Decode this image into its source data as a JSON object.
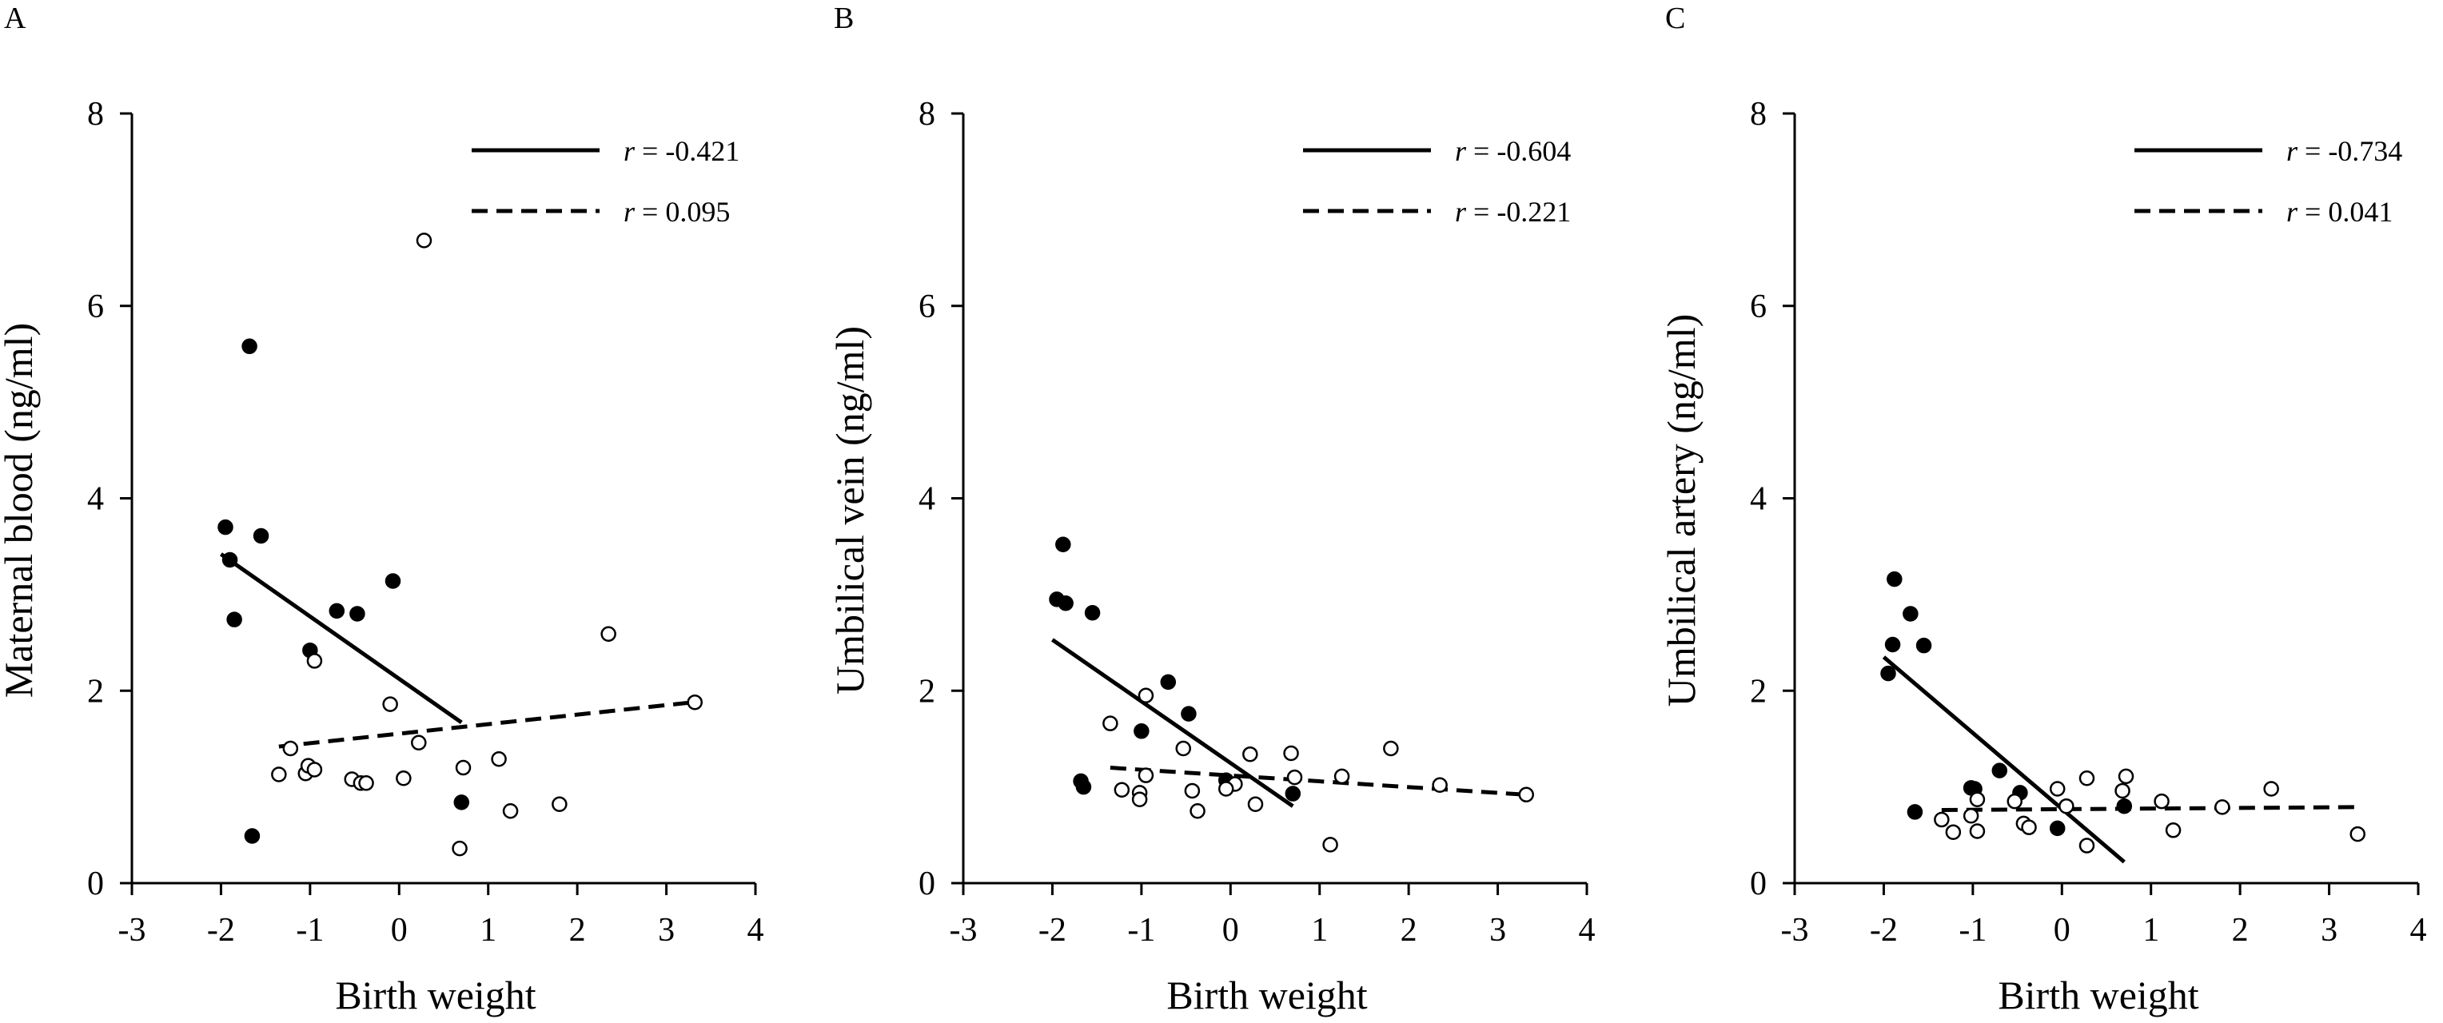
{
  "chart_data": [
    {
      "type": "scatter",
      "panel": "A",
      "xlabel": "Birth weight",
      "ylabel": "Maternal blood (ng/ml)",
      "xlim": [
        -3,
        4
      ],
      "ylim": [
        0,
        8
      ],
      "xticks": [
        -3,
        -2,
        -1,
        0,
        1,
        2,
        3,
        4
      ],
      "yticks": [
        0,
        2,
        4,
        6,
        8
      ],
      "xtick_labels": [
        "-3",
        "-2",
        "-1",
        "0",
        "1",
        "2",
        "3",
        "4"
      ],
      "ytick_labels": [
        "0",
        "2",
        "4",
        "6",
        "8"
      ],
      "series": [
        {
          "name": "filled",
          "marker": "filled",
          "points": [
            [
              -1.68,
              5.58
            ],
            [
              -1.95,
              3.7
            ],
            [
              -1.55,
              3.61
            ],
            [
              -1.9,
              3.36
            ],
            [
              -1.85,
              2.74
            ],
            [
              -0.7,
              2.83
            ],
            [
              -0.47,
              2.8
            ],
            [
              -0.07,
              3.14
            ],
            [
              -1.0,
              2.42
            ],
            [
              0.7,
              0.84
            ],
            [
              -1.65,
              0.49
            ]
          ]
        },
        {
          "name": "open",
          "marker": "open",
          "points": [
            [
              0.28,
              6.68
            ],
            [
              2.35,
              2.59
            ],
            [
              3.32,
              1.88
            ],
            [
              -0.95,
              2.31
            ],
            [
              -0.1,
              1.86
            ],
            [
              0.22,
              1.46
            ],
            [
              -1.22,
              1.4
            ],
            [
              -1.35,
              1.13
            ],
            [
              -1.05,
              1.14
            ],
            [
              -1.02,
              1.22
            ],
            [
              -0.95,
              1.18
            ],
            [
              -0.53,
              1.08
            ],
            [
              -0.43,
              1.04
            ],
            [
              -0.37,
              1.04
            ],
            [
              0.05,
              1.09
            ],
            [
              0.72,
              1.2
            ],
            [
              1.12,
              1.29
            ],
            [
              1.25,
              0.75
            ],
            [
              1.8,
              0.82
            ],
            [
              0.68,
              0.36
            ]
          ]
        }
      ],
      "regression_lines": [
        {
          "style": "solid",
          "x": [
            -2.0,
            0.7
          ],
          "y": [
            3.42,
            1.67
          ],
          "label_prefix": "r",
          "label_value": " = -0.421"
        },
        {
          "style": "dashed",
          "x": [
            -1.35,
            3.3
          ],
          "y": [
            1.42,
            1.88
          ],
          "label_prefix": "r",
          "label_value": " = 0.095"
        }
      ],
      "legend_position": "top-right"
    },
    {
      "type": "scatter",
      "panel": "B",
      "xlabel": "Birth weight",
      "ylabel": "Umbilical vein (ng/ml)",
      "xlim": [
        -3,
        4
      ],
      "ylim": [
        0,
        8
      ],
      "xticks": [
        -3,
        -2,
        -1,
        0,
        1,
        2,
        3,
        4
      ],
      "yticks": [
        0,
        2,
        4,
        6,
        8
      ],
      "xtick_labels": [
        "-3",
        "-2",
        "-1",
        "0",
        "1",
        "2",
        "3",
        "4"
      ],
      "ytick_labels": [
        "0",
        "2",
        "4",
        "6",
        "8"
      ],
      "series": [
        {
          "name": "filled",
          "marker": "filled",
          "points": [
            [
              -1.88,
              3.52
            ],
            [
              -1.95,
              2.95
            ],
            [
              -1.85,
              2.91
            ],
            [
              -1.55,
              2.81
            ],
            [
              -0.7,
              2.09
            ],
            [
              -0.47,
              1.76
            ],
            [
              -1.0,
              1.58
            ],
            [
              -1.68,
              1.06
            ],
            [
              -1.65,
              1.0
            ],
            [
              0.7,
              0.93
            ],
            [
              -0.05,
              1.07
            ]
          ]
        },
        {
          "name": "open",
          "marker": "open",
          "points": [
            [
              -0.95,
              1.95
            ],
            [
              -1.35,
              1.66
            ],
            [
              -0.53,
              1.4
            ],
            [
              0.22,
              1.34
            ],
            [
              0.68,
              1.35
            ],
            [
              1.8,
              1.4
            ],
            [
              1.25,
              1.11
            ],
            [
              0.72,
              1.1
            ],
            [
              -0.95,
              1.12
            ],
            [
              -1.22,
              0.97
            ],
            [
              -1.02,
              0.94
            ],
            [
              -1.02,
              0.87
            ],
            [
              -0.43,
              0.96
            ],
            [
              -0.37,
              0.75
            ],
            [
              0.05,
              1.03
            ],
            [
              -0.05,
              0.98
            ],
            [
              0.28,
              0.82
            ],
            [
              2.35,
              1.02
            ],
            [
              3.32,
              0.92
            ],
            [
              1.12,
              0.4
            ]
          ]
        }
      ],
      "regression_lines": [
        {
          "style": "solid",
          "x": [
            -2.0,
            0.7
          ],
          "y": [
            2.53,
            0.8
          ],
          "label_prefix": "r",
          "label_value": " = -0.604"
        },
        {
          "style": "dashed",
          "x": [
            -1.35,
            3.3
          ],
          "y": [
            1.2,
            0.92
          ],
          "label_prefix": "r",
          "label_value": " = -0.221"
        }
      ],
      "legend_position": "top-right"
    },
    {
      "type": "scatter",
      "panel": "C",
      "xlabel": "Birth weight",
      "ylabel": "Umbilical artery (ng/ml)",
      "xlim": [
        -3,
        4
      ],
      "ylim": [
        0,
        8
      ],
      "xticks": [
        -3,
        -2,
        -1,
        0,
        1,
        2,
        3,
        4
      ],
      "yticks": [
        0,
        2,
        4,
        6,
        8
      ],
      "xtick_labels": [
        "-3",
        "-2",
        "-1",
        "0",
        "1",
        "2",
        "3",
        "4"
      ],
      "ytick_labels": [
        "0",
        "2",
        "4",
        "6",
        "8"
      ],
      "series": [
        {
          "name": "filled",
          "marker": "filled",
          "points": [
            [
              -1.88,
              3.16
            ],
            [
              -1.7,
              2.8
            ],
            [
              -1.9,
              2.48
            ],
            [
              -1.55,
              2.47
            ],
            [
              -1.95,
              2.18
            ],
            [
              -0.7,
              1.17
            ],
            [
              -1.02,
              0.99
            ],
            [
              -0.98,
              0.98
            ],
            [
              -0.47,
              0.94
            ],
            [
              -1.65,
              0.74
            ],
            [
              0.7,
              0.8
            ],
            [
              -0.05,
              0.57
            ]
          ]
        },
        {
          "name": "open",
          "marker": "open",
          "points": [
            [
              0.72,
              1.11
            ],
            [
              0.28,
              1.09
            ],
            [
              -0.05,
              0.98
            ],
            [
              0.68,
              0.96
            ],
            [
              2.35,
              0.98
            ],
            [
              1.12,
              0.85
            ],
            [
              1.8,
              0.79
            ],
            [
              -0.95,
              0.87
            ],
            [
              -0.53,
              0.85
            ],
            [
              0.05,
              0.8
            ],
            [
              -1.35,
              0.66
            ],
            [
              -1.02,
              0.7
            ],
            [
              -0.43,
              0.62
            ],
            [
              -0.37,
              0.58
            ],
            [
              -1.22,
              0.53
            ],
            [
              -0.95,
              0.54
            ],
            [
              1.25,
              0.55
            ],
            [
              0.28,
              0.39
            ],
            [
              3.32,
              0.51
            ]
          ]
        }
      ],
      "regression_lines": [
        {
          "style": "solid",
          "x": [
            -2.0,
            0.7
          ],
          "y": [
            2.35,
            0.22
          ],
          "label_prefix": "r",
          "label_value": " = -0.734"
        },
        {
          "style": "dashed",
          "x": [
            -1.35,
            3.3
          ],
          "y": [
            0.76,
            0.79
          ],
          "label_prefix": "r",
          "label_value": " = 0.041"
        }
      ],
      "legend_position": "top-right"
    }
  ]
}
